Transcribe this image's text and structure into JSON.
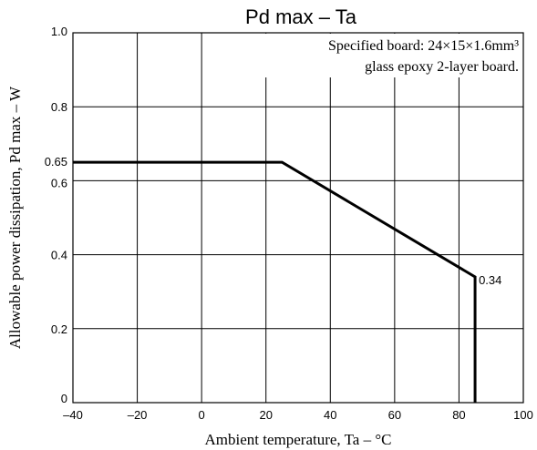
{
  "chart_data": {
    "type": "line",
    "title": "Pd max  –  Ta",
    "xlabel": "Ambient temperature, Ta  –  °C",
    "ylabel": "Allowable power dissipation, Pd max  –  W",
    "xlim": [
      -40,
      100
    ],
    "ylim": [
      0,
      1.0
    ],
    "x_ticks": [
      -40,
      -20,
      0,
      20,
      40,
      60,
      80,
      100
    ],
    "x_tick_labels": [
      "–40",
      "–20",
      "0",
      "20",
      "40",
      "60",
      "80",
      "100"
    ],
    "y_ticks": [
      0,
      0.2,
      0.4,
      0.6,
      0.65,
      0.8,
      1.0
    ],
    "y_tick_labels": [
      "0",
      "0.2",
      "0.4",
      "0.6",
      "0.65",
      "0.8",
      "1.0"
    ],
    "grid": true,
    "series": [
      {
        "x": [
          -40,
          25,
          85,
          85
        ],
        "y": [
          0.65,
          0.65,
          0.34,
          0
        ]
      }
    ],
    "annotations": [
      {
        "text": "0.34",
        "x": 85,
        "y": 0.34
      }
    ],
    "note_lines": [
      "Specified board: 24×15×1.6mm³",
      "glass epoxy 2-layer board."
    ]
  }
}
